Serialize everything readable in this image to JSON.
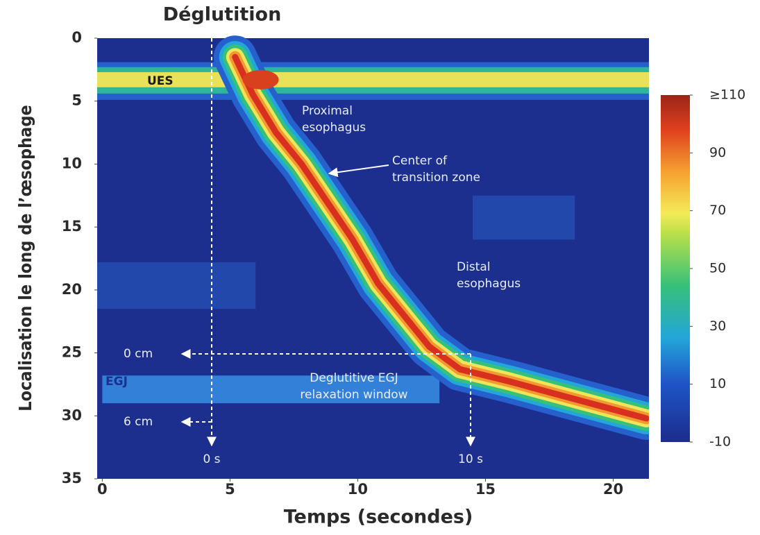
{
  "chart_data": {
    "type": "heatmap",
    "title": "Déglutition",
    "xlabel": "Temps (secondes)",
    "ylabel": "Localisation le long de l’œsophage",
    "xlim": [
      -0.2,
      21.4
    ],
    "xticks": [
      0,
      5,
      10,
      15,
      20
    ],
    "ylim": [
      0,
      35
    ],
    "yticks": [
      0,
      5,
      10,
      15,
      20,
      25,
      30,
      35
    ],
    "clim": [
      -10,
      110
    ],
    "cticks": [
      {
        "value": 110,
        "label": "≥110"
      },
      90,
      70,
      50,
      30,
      10,
      -10
    ],
    "annotations": [
      [
        "UES"
      ],
      [
        "Proximal",
        "esophagus"
      ],
      [
        "Center of",
        "transition zone"
      ],
      [
        "Distal",
        "esophagus"
      ],
      [
        "0 cm"
      ],
      [
        "6 cm"
      ],
      [
        "EGJ"
      ],
      [
        "Deglutitive EGJ",
        "relaxation window"
      ],
      [
        "0 s"
      ],
      [
        "10 s"
      ]
    ]
  }
}
